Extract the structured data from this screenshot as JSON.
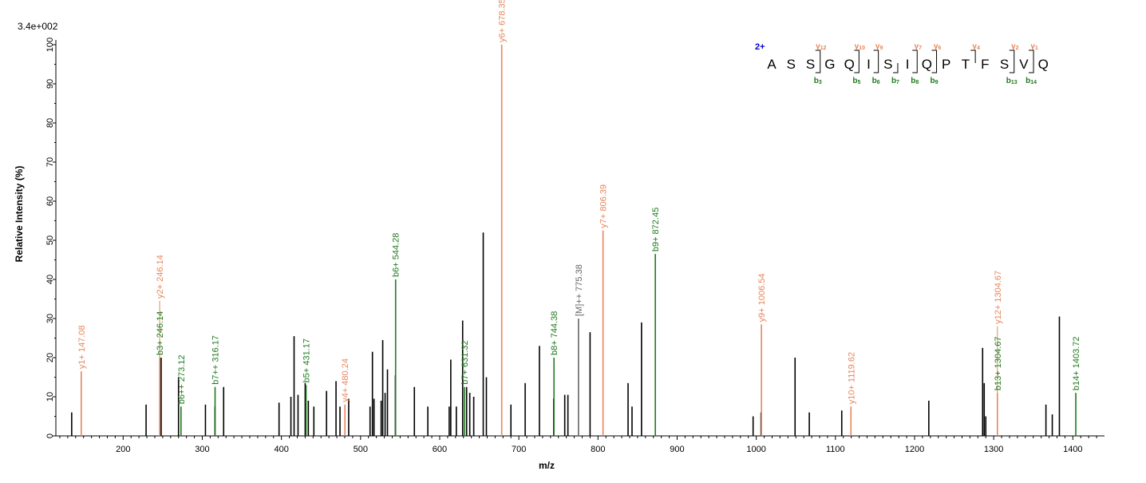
{
  "chart_data": {
    "type": "bar",
    "title": "",
    "scale_label": "3.4e+002",
    "xlabel": "m/z",
    "ylabel": "Relative   Intensity (%)",
    "xlim": [
      115,
      1440
    ],
    "ylim": [
      0,
      100
    ],
    "x_ticks": [
      200,
      300,
      400,
      500,
      600,
      700,
      800,
      900,
      1000,
      1100,
      1200,
      1300,
      1400
    ],
    "y_ticks": [
      0,
      10,
      20,
      30,
      40,
      50,
      60,
      70,
      80,
      90,
      100
    ],
    "colors": {
      "y_ion": "#e8865a",
      "b_ion": "#1f7a1f",
      "precursor": "#666666",
      "unlabeled": "#000000",
      "charge": "#0000cc"
    },
    "unlabeled_peaks": [
      [
        135,
        6
      ],
      [
        229,
        8
      ],
      [
        248,
        20
      ],
      [
        270,
        15
      ],
      [
        304,
        8
      ],
      [
        316,
        7.5
      ],
      [
        327,
        12.5
      ],
      [
        397,
        8.5
      ],
      [
        412,
        10
      ],
      [
        416,
        25.5
      ],
      [
        421,
        10.5
      ],
      [
        430,
        13.5
      ],
      [
        434,
        9
      ],
      [
        441,
        7.5
      ],
      [
        457,
        11.5
      ],
      [
        469,
        14
      ],
      [
        474,
        7.5
      ],
      [
        485,
        9.5
      ],
      [
        512,
        7.5
      ],
      [
        515,
        21.5
      ],
      [
        517,
        9.5
      ],
      [
        526,
        9
      ],
      [
        528,
        24.5
      ],
      [
        531,
        11
      ],
      [
        534,
        17
      ],
      [
        544,
        15.5
      ],
      [
        568,
        12.5
      ],
      [
        585,
        7.5
      ],
      [
        612,
        7.5
      ],
      [
        614,
        19.5
      ],
      [
        621,
        7.5
      ],
      [
        629,
        29.5
      ],
      [
        634,
        12.5
      ],
      [
        638,
        11
      ],
      [
        643,
        10
      ],
      [
        655,
        52
      ],
      [
        659,
        15
      ],
      [
        690,
        8
      ],
      [
        708,
        13.5
      ],
      [
        726,
        23
      ],
      [
        744,
        9.5
      ],
      [
        758,
        10.5
      ],
      [
        762,
        10.5
      ],
      [
        790,
        26.5
      ],
      [
        838,
        13.5
      ],
      [
        843,
        7.5
      ],
      [
        855,
        29
      ],
      [
        996,
        5
      ],
      [
        1006,
        6
      ],
      [
        1049,
        20
      ],
      [
        1067,
        6
      ],
      [
        1108,
        6.5
      ],
      [
        1218,
        9
      ],
      [
        1286,
        22.5
      ],
      [
        1288,
        13.5
      ],
      [
        1290,
        5
      ],
      [
        1366,
        8
      ],
      [
        1374,
        5.5
      ],
      [
        1383,
        30.5
      ]
    ],
    "labeled_peaks": [
      {
        "x": 147.08,
        "y": 16.5,
        "label": "y1+ 147.08",
        "ion": "y"
      },
      {
        "x": 246.14,
        "y": 34.5,
        "label": "y2+ 246.14",
        "ion": "y",
        "stem": 20
      },
      {
        "x": 246.14,
        "y": 20,
        "label": "b3+ 246.14",
        "ion": "b",
        "stem": 0
      },
      {
        "x": 273.12,
        "y": 7.5,
        "label": "b6++ 273.12",
        "ion": "b"
      },
      {
        "x": 316.17,
        "y": 12.5,
        "label": "b7++ 316.17",
        "ion": "b"
      },
      {
        "x": 431.17,
        "y": 13,
        "label": "b5+ 431.17",
        "ion": "b"
      },
      {
        "x": 480.24,
        "y": 8,
        "label": "y4+ 480.24",
        "ion": "y"
      },
      {
        "x": 544.28,
        "y": 40,
        "label": "b6+ 544.28",
        "ion": "b"
      },
      {
        "x": 631.32,
        "y": 12.5,
        "label": "b7+ 631.32",
        "ion": "b"
      },
      {
        "x": 678.35,
        "y": 100,
        "label": "y6+ 678.35",
        "ion": "y"
      },
      {
        "x": 744.38,
        "y": 20,
        "label": "b8+ 744.38",
        "ion": "b"
      },
      {
        "x": 775.38,
        "y": 30,
        "label": "[M]++ 775.38",
        "ion": "p"
      },
      {
        "x": 806.39,
        "y": 52.5,
        "label": "y7+ 806.39",
        "ion": "y"
      },
      {
        "x": 872.45,
        "y": 46.5,
        "label": "b9+ 872.45",
        "ion": "b"
      },
      {
        "x": 1006.54,
        "y": 28.5,
        "label": "y9+ 1006.54",
        "ion": "y"
      },
      {
        "x": 1119.62,
        "y": 7.5,
        "label": "y10+ 1119.62",
        "ion": "y"
      },
      {
        "x": 1304.67,
        "y": 28,
        "label": "y12+ 1304.67",
        "ion": "y",
        "stem": 11
      },
      {
        "x": 1304.67,
        "y": 11,
        "label": "b13+ 1304.67",
        "ion": "b",
        "stem": 0
      },
      {
        "x": 1403.72,
        "y": 11,
        "label": "b14+ 1403.72",
        "ion": "b"
      }
    ]
  },
  "sequence": {
    "charge": "2+",
    "residues": [
      "A",
      "S",
      "S",
      "G",
      "Q",
      "I",
      "S",
      "I",
      "Q",
      "P",
      "T",
      "F",
      "S",
      "V",
      "Q"
    ],
    "y_ions": [
      {
        "after": 3,
        "label": "y",
        "sub": "12"
      },
      {
        "after": 5,
        "label": "y",
        "sub": "10"
      },
      {
        "after": 6,
        "label": "y",
        "sub": "9"
      },
      {
        "after": 8,
        "label": "y",
        "sub": "7"
      },
      {
        "after": 9,
        "label": "y",
        "sub": "6"
      },
      {
        "after": 11,
        "label": "y",
        "sub": "4"
      },
      {
        "after": 13,
        "label": "y",
        "sub": "2"
      },
      {
        "after": 14,
        "label": "y",
        "sub": "1"
      }
    ],
    "b_ions": [
      {
        "after": 3,
        "label": "b",
        "sub": "3"
      },
      {
        "after": 5,
        "label": "b",
        "sub": "5"
      },
      {
        "after": 6,
        "label": "b",
        "sub": "6"
      },
      {
        "after": 7,
        "label": "b",
        "sub": "7"
      },
      {
        "after": 8,
        "label": "b",
        "sub": "8"
      },
      {
        "after": 9,
        "label": "b",
        "sub": "9"
      },
      {
        "after": 13,
        "label": "b",
        "sub": "13"
      },
      {
        "after": 14,
        "label": "b",
        "sub": "14"
      }
    ]
  }
}
